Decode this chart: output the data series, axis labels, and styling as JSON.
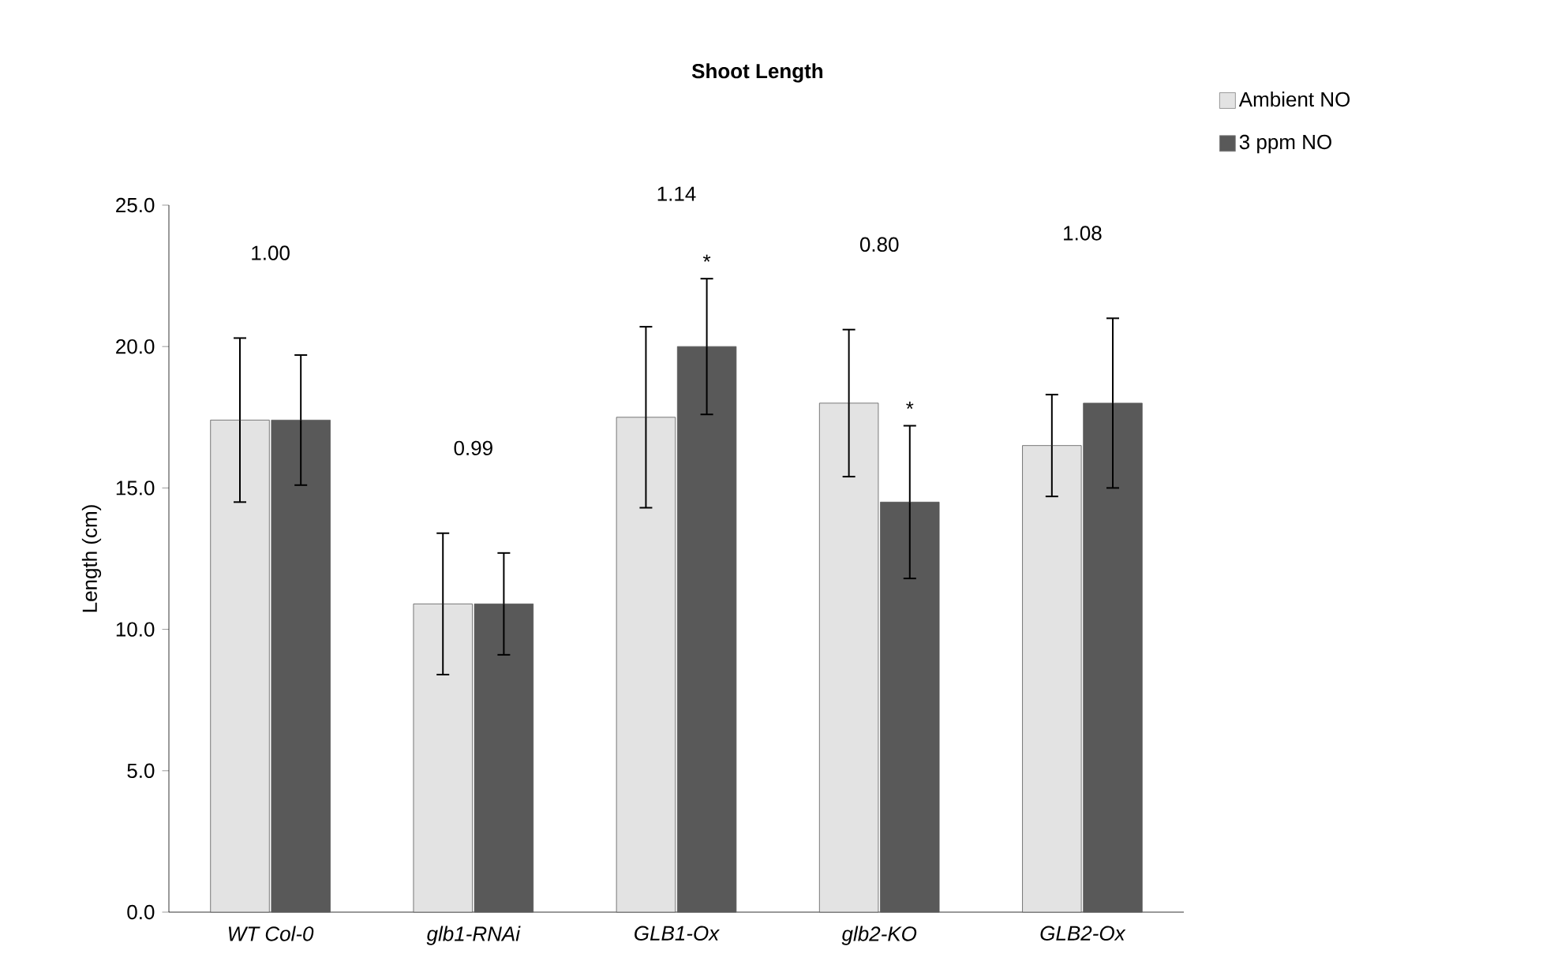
{
  "chart_data": {
    "type": "bar",
    "title": "Shoot Length",
    "ylabel": "Length (cm)",
    "categories": [
      "WT Col-0",
      "glb1-RNAi",
      "GLB1-Ox",
      "glb2-KO",
      "GLB2-Ox"
    ],
    "series": [
      {
        "name": "Ambient NO",
        "color": "#e3e3e3",
        "values": [
          17.4,
          10.9,
          17.5,
          18.0,
          16.5
        ],
        "errors": [
          2.9,
          2.5,
          3.2,
          2.6,
          1.8
        ]
      },
      {
        "name": "3 ppm NO",
        "color": "#595959",
        "values": [
          17.4,
          10.9,
          20.0,
          14.5,
          18.0
        ],
        "errors": [
          2.3,
          1.8,
          2.4,
          2.7,
          3.0
        ]
      }
    ],
    "ylim": [
      0,
      25
    ],
    "yticks": [
      {
        "value": 0,
        "label": "0.0"
      },
      {
        "value": 5,
        "label": "5.0"
      },
      {
        "value": 10,
        "label": "10.0"
      },
      {
        "value": 15,
        "label": "15.0"
      },
      {
        "value": 20,
        "label": "20.0"
      },
      {
        "value": 25,
        "label": "25.0"
      }
    ],
    "annotations": [
      "1.00",
      "0.99",
      "1.14",
      "0.80",
      "1.08",
      "*",
      "*"
    ],
    "grid": false,
    "legend": "top right"
  }
}
